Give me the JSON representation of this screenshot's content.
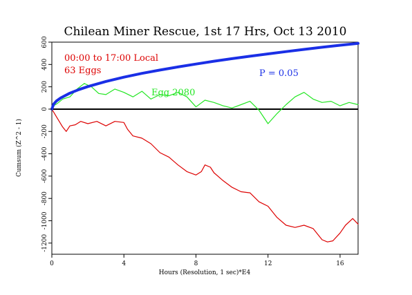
{
  "colors": {
    "background": "#ffffff",
    "axis": "#000000",
    "cumsum": "#dd0000",
    "probability": "#1a2fe6",
    "egg": "#22e622"
  },
  "chart_data": {
    "type": "line",
    "title": "Chilean Miner Rescue, 1st 17 Hrs, Oct 13 2010",
    "xlabel": "Hours (Resolution, 1 sec)*E4",
    "ylabel": "Cumsum (Z^2 - 1)",
    "xlim": [
      0,
      17
    ],
    "ylim": [
      -1300,
      600
    ],
    "x_ticks": [
      0,
      4,
      8,
      12,
      16
    ],
    "y_ticks": [
      600,
      400,
      200,
      0,
      -200,
      -400,
      -600,
      -800,
      -1000,
      -1200
    ],
    "annotations": {
      "time_range": "00:00 to 17:00 Local",
      "egg_count": "63 Eggs",
      "probability": "P = 0.05",
      "egg_label": "Egg 2080"
    },
    "series": [
      {
        "key": "cumsum",
        "x": [
          0,
          0.3,
          0.6,
          0.8,
          1.0,
          1.3,
          1.6,
          2.0,
          2.5,
          3.0,
          3.5,
          4.0,
          4.2,
          4.5,
          5.0,
          5.5,
          6.0,
          6.5,
          7.0,
          7.5,
          8.0,
          8.3,
          8.5,
          8.8,
          9.0,
          9.5,
          10.0,
          10.5,
          11.0,
          11.5,
          12.0,
          12.5,
          13.0,
          13.5,
          14.0,
          14.5,
          15.0,
          15.3,
          15.6,
          16.0,
          16.3,
          16.7,
          17.0
        ],
        "y": [
          0,
          -80,
          -160,
          -200,
          -150,
          -140,
          -110,
          -130,
          -110,
          -150,
          -110,
          -120,
          -180,
          -240,
          -260,
          -310,
          -390,
          -430,
          -500,
          -560,
          -590,
          -560,
          -500,
          -520,
          -570,
          -640,
          -700,
          -740,
          -750,
          -830,
          -870,
          -970,
          -1040,
          -1060,
          -1040,
          -1070,
          -1170,
          -1190,
          -1180,
          -1110,
          -1040,
          -980,
          -1030
        ]
      },
      {
        "key": "egg",
        "x": [
          0,
          0.3,
          0.6,
          1.0,
          1.4,
          1.8,
          2.2,
          2.6,
          3.0,
          3.5,
          4.0,
          4.5,
          5.0,
          5.5,
          6.0,
          6.5,
          7.0,
          7.5,
          8.0,
          8.5,
          9.0,
          9.5,
          10.0,
          10.5,
          11.0,
          11.5,
          12.0,
          12.5,
          13.0,
          13.5,
          14.0,
          14.5,
          15.0,
          15.5,
          16.0,
          16.5,
          17.0
        ],
        "y": [
          20,
          50,
          90,
          110,
          180,
          230,
          200,
          140,
          130,
          180,
          150,
          110,
          160,
          90,
          130,
          120,
          150,
          110,
          20,
          80,
          60,
          30,
          10,
          40,
          70,
          -10,
          -130,
          -40,
          40,
          110,
          150,
          90,
          60,
          70,
          30,
          60,
          40
        ]
      },
      {
        "key": "probability",
        "x": [
          0,
          0.1,
          0.25,
          0.5,
          1,
          1.5,
          2,
          3,
          4,
          5,
          6,
          7,
          8,
          9,
          10,
          11,
          12,
          13,
          14,
          15,
          16,
          17
        ],
        "y": [
          0,
          45,
          72,
          101,
          143,
          175,
          202,
          248,
          286,
          320,
          350,
          378,
          404,
          429,
          452,
          474,
          495,
          515,
          535,
          554,
          572,
          589
        ]
      }
    ]
  }
}
